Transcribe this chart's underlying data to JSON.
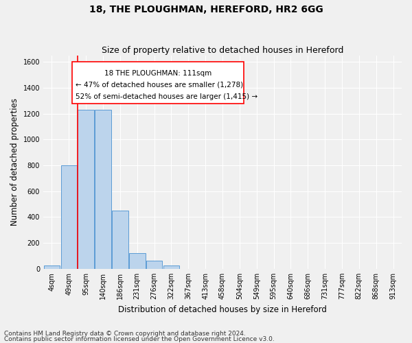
{
  "title": "18, THE PLOUGHMAN, HEREFORD, HR2 6GG",
  "subtitle": "Size of property relative to detached houses in Hereford",
  "xlabel": "Distribution of detached houses by size in Hereford",
  "ylabel": "Number of detached properties",
  "footer1": "Contains HM Land Registry data © Crown copyright and database right 2024.",
  "footer2": "Contains public sector information licensed under the Open Government Licence v3.0.",
  "categories": [
    "4sqm",
    "49sqm",
    "95sqm",
    "140sqm",
    "186sqm",
    "231sqm",
    "276sqm",
    "322sqm",
    "367sqm",
    "413sqm",
    "458sqm",
    "504sqm",
    "549sqm",
    "595sqm",
    "640sqm",
    "686sqm",
    "731sqm",
    "777sqm",
    "822sqm",
    "868sqm",
    "913sqm"
  ],
  "values": [
    25,
    800,
    1230,
    1230,
    450,
    120,
    60,
    25,
    0,
    0,
    0,
    0,
    0,
    0,
    0,
    0,
    0,
    0,
    0,
    0,
    0
  ],
  "bar_color": "#bcd4ec",
  "bar_edge_color": "#5b9bd5",
  "ylim": [
    0,
    1650
  ],
  "yticks": [
    0,
    200,
    400,
    600,
    800,
    1000,
    1200,
    1400,
    1600
  ],
  "annotation_line1": "18 THE PLOUGHMAN: 111sqm",
  "annotation_line2": "← 47% of detached houses are smaller (1,278)",
  "annotation_line3": "52% of semi-detached houses are larger (1,415) →",
  "red_line_bar_index": 2,
  "background_color": "#f0f0f0",
  "grid_color": "#ffffff",
  "title_fontsize": 10,
  "subtitle_fontsize": 9,
  "label_fontsize": 8.5,
  "tick_fontsize": 7,
  "annot_fontsize": 7.5,
  "footer_fontsize": 6.5
}
